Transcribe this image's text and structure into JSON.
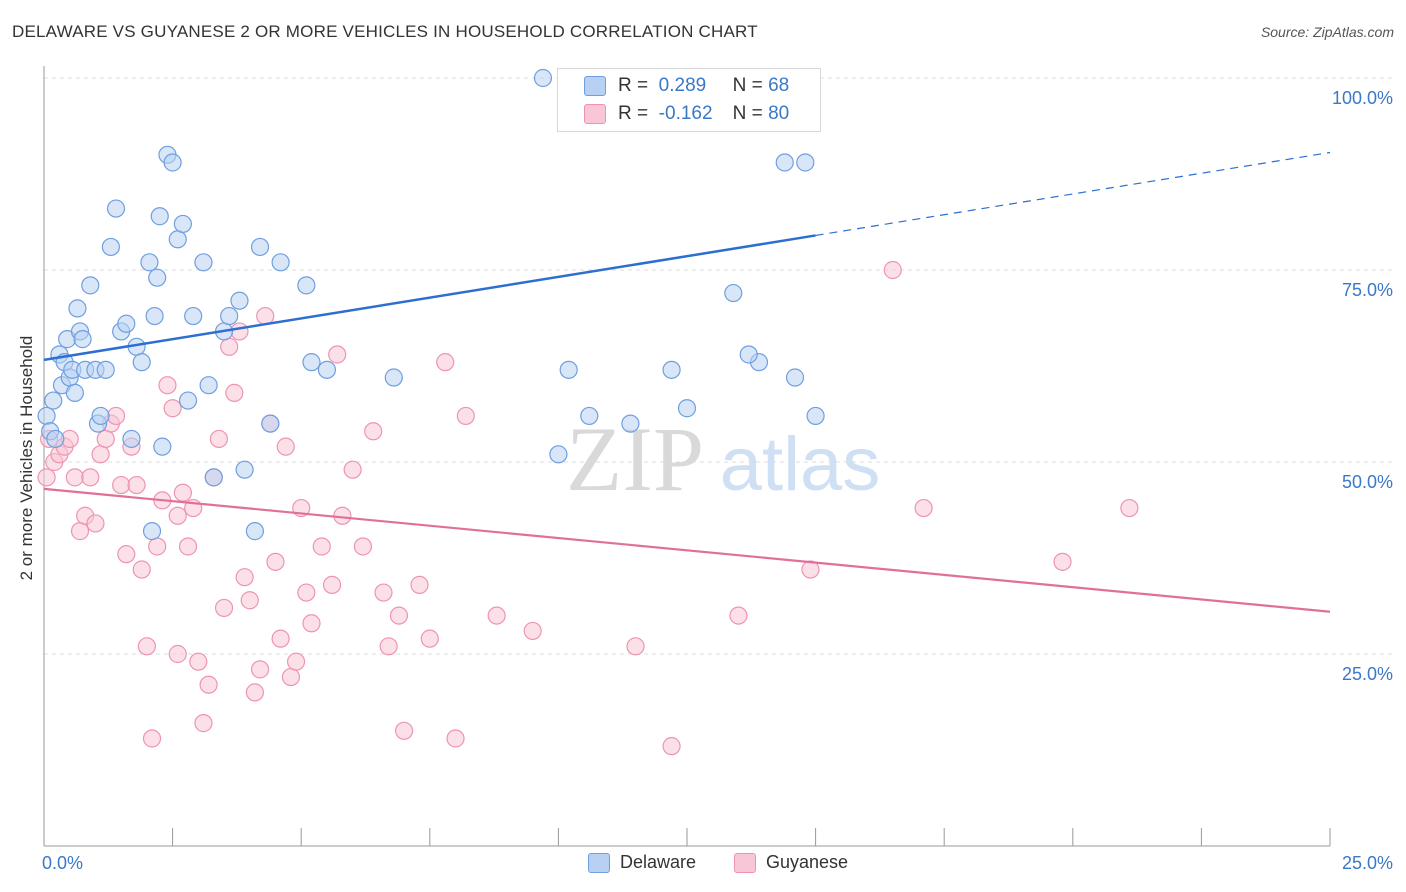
{
  "title": "DELAWARE VS GUYANESE 2 OR MORE VEHICLES IN HOUSEHOLD CORRELATION CHART",
  "source": "Source: ZipAtlas.com",
  "watermark": {
    "zip": "ZIP",
    "atlas": "atlas"
  },
  "legend": {
    "r_label": "R =",
    "n_label": "N =",
    "delaware": {
      "r": "0.289",
      "n": "68"
    },
    "guyanese": {
      "r": "-0.162",
      "n": "80"
    }
  },
  "colors": {
    "delaware_fill": "#b8d1f3",
    "delaware_stroke": "#6f9fe0",
    "delaware_line": "#2c6fd0",
    "guyanese_fill": "#f8c6d6",
    "guyanese_stroke": "#ee94b2",
    "guyanese_line": "#e0709a",
    "tick_text": "#3a78c8",
    "grid": "#dddddd"
  },
  "chart_data": {
    "type": "scatter",
    "xlabel": "",
    "ylabel": "2 or more Vehicles in Household",
    "xlim": [
      0,
      25
    ],
    "ylim": [
      0,
      100
    ],
    "x_tick_labels": [
      {
        "value": 0,
        "label": "0.0%"
      },
      {
        "value": 25,
        "label": "25.0%"
      }
    ],
    "y_tick_labels": [
      {
        "value": 100,
        "label": "100.0%"
      },
      {
        "value": 75,
        "label": "75.0%"
      },
      {
        "value": 50,
        "label": "50.0%"
      },
      {
        "value": 25,
        "label": "25.0%"
      }
    ],
    "grid": true,
    "legend_position": "top-center",
    "series": [
      {
        "name": "Delaware",
        "points": [
          [
            0.05,
            56
          ],
          [
            0.12,
            54
          ],
          [
            0.18,
            58
          ],
          [
            0.22,
            53
          ],
          [
            0.3,
            64
          ],
          [
            0.35,
            60
          ],
          [
            0.4,
            63
          ],
          [
            0.45,
            66
          ],
          [
            0.5,
            61
          ],
          [
            0.55,
            62
          ],
          [
            0.6,
            59
          ],
          [
            0.65,
            70
          ],
          [
            0.7,
            67
          ],
          [
            0.75,
            66
          ],
          [
            0.8,
            62
          ],
          [
            0.9,
            73
          ],
          [
            1.0,
            62
          ],
          [
            1.05,
            55
          ],
          [
            1.1,
            56
          ],
          [
            1.2,
            62
          ],
          [
            1.3,
            78
          ],
          [
            1.4,
            83
          ],
          [
            1.5,
            67
          ],
          [
            1.6,
            68
          ],
          [
            1.7,
            53
          ],
          [
            1.8,
            65
          ],
          [
            1.9,
            63
          ],
          [
            2.05,
            76
          ],
          [
            2.1,
            41
          ],
          [
            2.15,
            69
          ],
          [
            2.2,
            74
          ],
          [
            2.25,
            82
          ],
          [
            2.3,
            52
          ],
          [
            2.4,
            90
          ],
          [
            2.5,
            89
          ],
          [
            2.6,
            79
          ],
          [
            2.7,
            81
          ],
          [
            2.8,
            58
          ],
          [
            2.9,
            69
          ],
          [
            3.1,
            76
          ],
          [
            3.2,
            60
          ],
          [
            3.3,
            48
          ],
          [
            3.5,
            67
          ],
          [
            3.6,
            69
          ],
          [
            3.8,
            71
          ],
          [
            3.9,
            49
          ],
          [
            4.1,
            41
          ],
          [
            4.2,
            78
          ],
          [
            4.4,
            55
          ],
          [
            4.6,
            76
          ],
          [
            5.1,
            73
          ],
          [
            5.2,
            63
          ],
          [
            5.5,
            62
          ],
          [
            6.8,
            61
          ],
          [
            10.0,
            51
          ],
          [
            10.2,
            62
          ],
          [
            10.6,
            56
          ],
          [
            11.4,
            55
          ],
          [
            12.2,
            62
          ],
          [
            12.5,
            57
          ],
          [
            13.9,
            63
          ],
          [
            13.4,
            72
          ],
          [
            13.7,
            64
          ],
          [
            14.6,
            61
          ],
          [
            15.0,
            56
          ],
          [
            9.7,
            100
          ],
          [
            14.4,
            89
          ],
          [
            14.8,
            89
          ]
        ]
      },
      {
        "name": "Guyanese",
        "points": [
          [
            0.05,
            48
          ],
          [
            0.1,
            53
          ],
          [
            0.2,
            50
          ],
          [
            0.3,
            51
          ],
          [
            0.4,
            52
          ],
          [
            0.5,
            53
          ],
          [
            0.6,
            48
          ],
          [
            0.7,
            41
          ],
          [
            0.8,
            43
          ],
          [
            0.9,
            48
          ],
          [
            1.0,
            42
          ],
          [
            1.1,
            51
          ],
          [
            1.2,
            53
          ],
          [
            1.3,
            55
          ],
          [
            1.4,
            56
          ],
          [
            1.5,
            47
          ],
          [
            1.6,
            38
          ],
          [
            1.7,
            52
          ],
          [
            1.8,
            47
          ],
          [
            1.9,
            36
          ],
          [
            2.0,
            26
          ],
          [
            2.1,
            14
          ],
          [
            2.2,
            39
          ],
          [
            2.3,
            45
          ],
          [
            2.4,
            60
          ],
          [
            2.5,
            57
          ],
          [
            2.6,
            43
          ],
          [
            2.7,
            46
          ],
          [
            2.8,
            39
          ],
          [
            2.9,
            44
          ],
          [
            3.0,
            24
          ],
          [
            3.1,
            16
          ],
          [
            3.2,
            21
          ],
          [
            3.3,
            48
          ],
          [
            3.4,
            53
          ],
          [
            3.5,
            31
          ],
          [
            3.6,
            65
          ],
          [
            3.7,
            59
          ],
          [
            3.8,
            67
          ],
          [
            3.9,
            35
          ],
          [
            4.0,
            32
          ],
          [
            4.1,
            20
          ],
          [
            4.2,
            23
          ],
          [
            4.3,
            69
          ],
          [
            4.4,
            55
          ],
          [
            4.5,
            37
          ],
          [
            4.6,
            27
          ],
          [
            4.7,
            52
          ],
          [
            4.8,
            22
          ],
          [
            4.9,
            24
          ],
          [
            5.0,
            44
          ],
          [
            5.1,
            33
          ],
          [
            5.2,
            29
          ],
          [
            5.4,
            39
          ],
          [
            5.6,
            34
          ],
          [
            5.7,
            64
          ],
          [
            5.8,
            43
          ],
          [
            6.0,
            49
          ],
          [
            6.2,
            39
          ],
          [
            6.4,
            54
          ],
          [
            6.6,
            33
          ],
          [
            6.7,
            26
          ],
          [
            7.0,
            15
          ],
          [
            7.3,
            34
          ],
          [
            7.5,
            27
          ],
          [
            7.8,
            63
          ],
          [
            8.0,
            14
          ],
          [
            8.2,
            56
          ],
          [
            8.8,
            30
          ],
          [
            9.5,
            28
          ],
          [
            11.5,
            26
          ],
          [
            12.2,
            13
          ],
          [
            13.5,
            30
          ],
          [
            14.9,
            36
          ],
          [
            16.5,
            75
          ],
          [
            17.1,
            44
          ],
          [
            19.8,
            37
          ],
          [
            21.1,
            44
          ],
          [
            2.6,
            25
          ],
          [
            6.9,
            30
          ]
        ]
      }
    ],
    "trend_lines": [
      {
        "name": "Delaware",
        "x": [
          0,
          15,
          25
        ],
        "y": [
          63.3,
          79.5,
          90.3
        ]
      },
      {
        "name": "Guyanese",
        "x": [
          0,
          25
        ],
        "y": [
          46.5,
          30.5
        ]
      }
    ]
  }
}
